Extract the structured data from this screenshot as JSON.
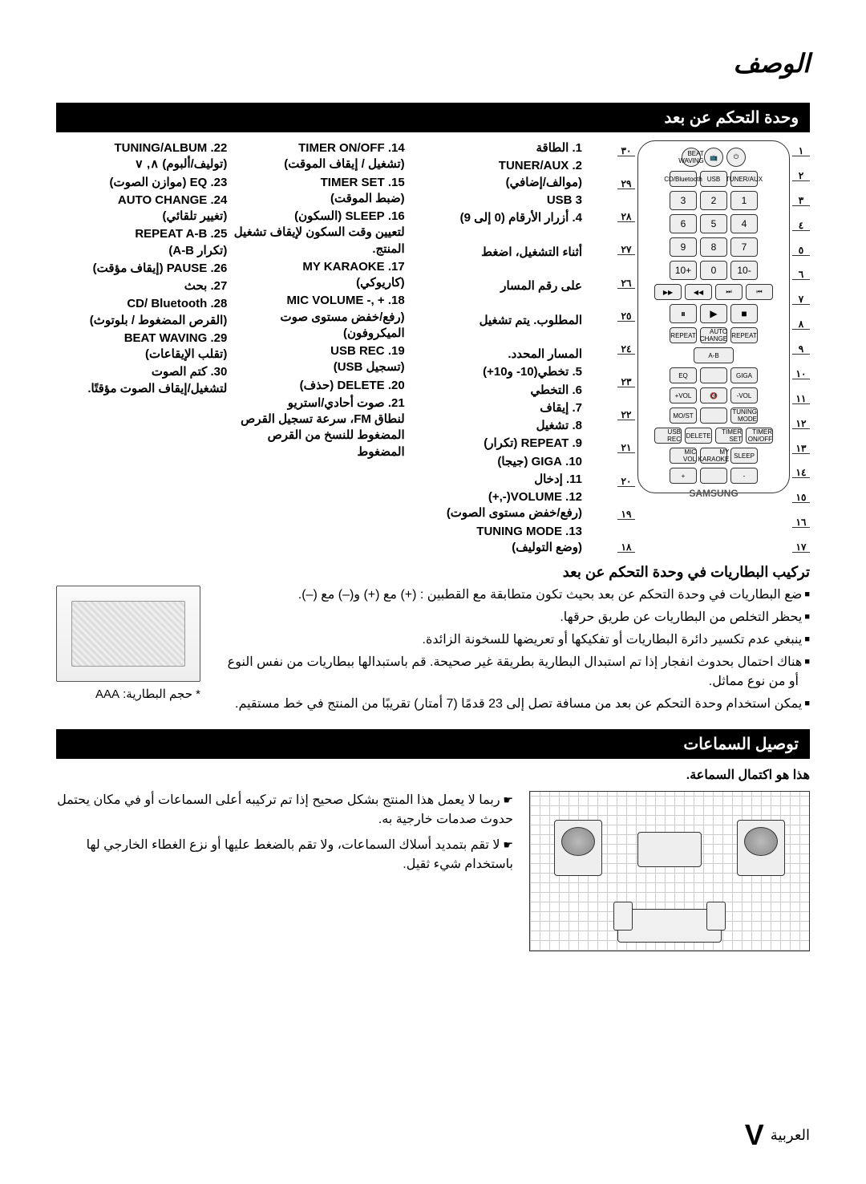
{
  "page": {
    "title": "الوصف",
    "footer_lang": "العربية",
    "footer_page": "V"
  },
  "sections": {
    "remote_title": "وحدة التحكم عن بعد",
    "battery_heading": "تركيب البطاريات في وحدة التحكم عن بعد",
    "battery_size_label": "* حجم البطارية: AAA",
    "speaker_title": "توصيل السماعات",
    "speaker_intro": "هذا هو اكتمال السماعة."
  },
  "remote": {
    "callouts_right": [
      "١",
      "٢",
      "٣",
      "٤",
      "٥",
      "٦",
      "٧",
      "٨",
      "٩",
      "١٠",
      "١١",
      "١٢",
      "١٣",
      "١٤",
      "١٥",
      "١٦",
      "١٧"
    ],
    "callouts_left": [
      "٣٠",
      "٢٩",
      "٢٨",
      "٢٧",
      "٢٦",
      "٢٥",
      "٢٤",
      "٢٣",
      "٢٢",
      "٢١",
      "٢٠",
      "١٩",
      "١٨"
    ],
    "logo": "SAMSUNG",
    "keypad": [
      "1",
      "2",
      "3",
      "4",
      "5",
      "6",
      "7",
      "8",
      "9",
      "-10",
      "0",
      "+10"
    ],
    "row_top": [
      "⏻",
      "📺",
      "BEAT WAVING"
    ],
    "row_tuner": [
      "TUNER/AUX",
      "USB",
      "CD/Bluetooth"
    ],
    "row_trans": [
      "⏮",
      "⏭",
      "◀◀",
      "▶▶"
    ],
    "row_play": [
      "■",
      "▶",
      "⏸"
    ],
    "row_func": [
      "REPEAT",
      "AUTO CHANGE",
      "REPEAT"
    ],
    "row_ab": [
      "A-B"
    ],
    "row_giga": [
      "GIGA",
      "",
      "EQ"
    ],
    "row_vol": [
      "VOL-",
      "🔇",
      "VOL+"
    ],
    "row_tune": [
      "TUNING MODE",
      "",
      "MO/ST"
    ],
    "row_timer": [
      "TIMER ON/OFF",
      "TIMER SET",
      "DELETE",
      "USB REC"
    ],
    "row_sleep": [
      "SLEEP",
      "MY KARAOKE",
      "MIC VOL"
    ],
    "row_mic": [
      "-",
      "",
      "+"
    ]
  },
  "legend": {
    "col1": [
      {
        "n": "1.",
        "m": "الطاقة"
      },
      {
        "n": "2.",
        "m": "TUNER/AUX",
        "s": "(موالف/إضافي)"
      },
      {
        "n": "3",
        "m": "USB"
      },
      {
        "n": "4.",
        "m": "أزرار الأرقام (0 إلى 9)"
      },
      {
        "n": "",
        "s": "أثناء التشغيل، اضغط"
      },
      {
        "n": "",
        "s": "على رقم المسار"
      },
      {
        "n": "",
        "s": "المطلوب. يتم تشغيل"
      },
      {
        "n": "",
        "s": "المسار المحدد."
      },
      {
        "n": "5.",
        "m": "تخطي(10- و10+)"
      },
      {
        "n": "6.",
        "m": "التخطي"
      },
      {
        "n": "7.",
        "m": "إيقاف"
      },
      {
        "n": "8.",
        "m": "تشغيل"
      },
      {
        "n": "9.",
        "m": "REPEAT (تكرار)"
      },
      {
        "n": "10.",
        "m": "GIGA (جيجا)"
      },
      {
        "n": "11.",
        "m": "إدخال"
      },
      {
        "n": "12.",
        "m": "VOLUME(-,+)",
        "s": "(رفع/خفض مستوى الصوت)"
      },
      {
        "n": "13.",
        "m": "TUNING MODE",
        "s": "(وضع التوليف)"
      }
    ],
    "col2": [
      {
        "n": "14.",
        "m": "TIMER ON/OFF",
        "s": "(تشغيل / إيقاف الموقت)"
      },
      {
        "n": "15.",
        "m": "TIMER SET",
        "s": "(ضبط الموقت)"
      },
      {
        "n": "16.",
        "m": "SLEEP (السكون)",
        "s": "لتعيين وقت السكون لإيقاف تشغيل المنتج."
      },
      {
        "n": "17.",
        "m": "MY KARAOKE",
        "s": "(كاريوكي)"
      },
      {
        "n": "18.",
        "m": "+ ,- MIC VOLUME",
        "s": "(رفع/خفض مستوى صوت الميكروفون)"
      },
      {
        "n": "19.",
        "m": "USB REC",
        "s": "(تسجيل USB)"
      },
      {
        "n": "20.",
        "m": "DELETE (حذف)"
      },
      {
        "n": "21.",
        "m": "صوت أحادي/استريو",
        "s": "لنطاق FM، سرعة تسجيل القرص المضغوط للنسخ من القرص المضغوط"
      }
    ],
    "col3": [
      {
        "n": "22.",
        "m": "TUNING/ALBUM",
        "s": "(توليف/ألبوم) ∧, ∨"
      },
      {
        "n": "23.",
        "m": "EQ (موازن الصوت)"
      },
      {
        "n": "24.",
        "m": "AUTO CHANGE",
        "s": "(تغيير تلقائي)"
      },
      {
        "n": "25.",
        "m": "REPEAT A-B",
        "s": "(تكرار A-B)"
      },
      {
        "n": "26.",
        "m": "PAUSE (إيقاف مؤقت)"
      },
      {
        "n": "27.",
        "m": "بحث"
      },
      {
        "n": "28.",
        "m": "CD/ Bluetooth",
        "s": "(القرص المضغوط / بلوتوث)"
      },
      {
        "n": "29.",
        "m": "BEAT WAVING",
        "s": "(تقلب الإيقاعات)"
      },
      {
        "n": "30.",
        "m": "كتم الصوت",
        "s": "لتشغيل/إيقاف الصوت مؤقتًا."
      }
    ]
  },
  "battery_notes": [
    "ضع البطاريات في وحدة التحكم عن بعد بحيث تكون متطابقة مع القطبين : (+) مع (+) و(–) مع (–).",
    "يحظر التخلص من البطاريات عن طريق حرقها.",
    "ينبغي عدم تكسير دائرة البطاريات أو تفكيكها أو تعريضها للسخونة الزائدة.",
    "هناك احتمال بحدوث انفجار إذا تم استبدال البطارية بطريقة غير صحيحة. قم باستبدالها ببطاريات من نفس النوع أو من نوع مماثل.",
    "يمكن استخدام وحدة التحكم عن بعد من مسافة تصل إلى 23 قدمًا (7 أمتار) تقريبًا من المنتج في خط مستقيم."
  ],
  "speaker_notes": [
    "ربما لا يعمل هذا المنتج بشكل صحيح إذا تم تركيبه أعلى السماعات أو في مكان يحتمل حدوث صدمات خارجية به.",
    "لا تقم بتمديد أسلاك السماعات، ولا تقم بالضغط عليها أو نزع الغطاء الخارجي لها باستخدام شيء ثقيل."
  ]
}
